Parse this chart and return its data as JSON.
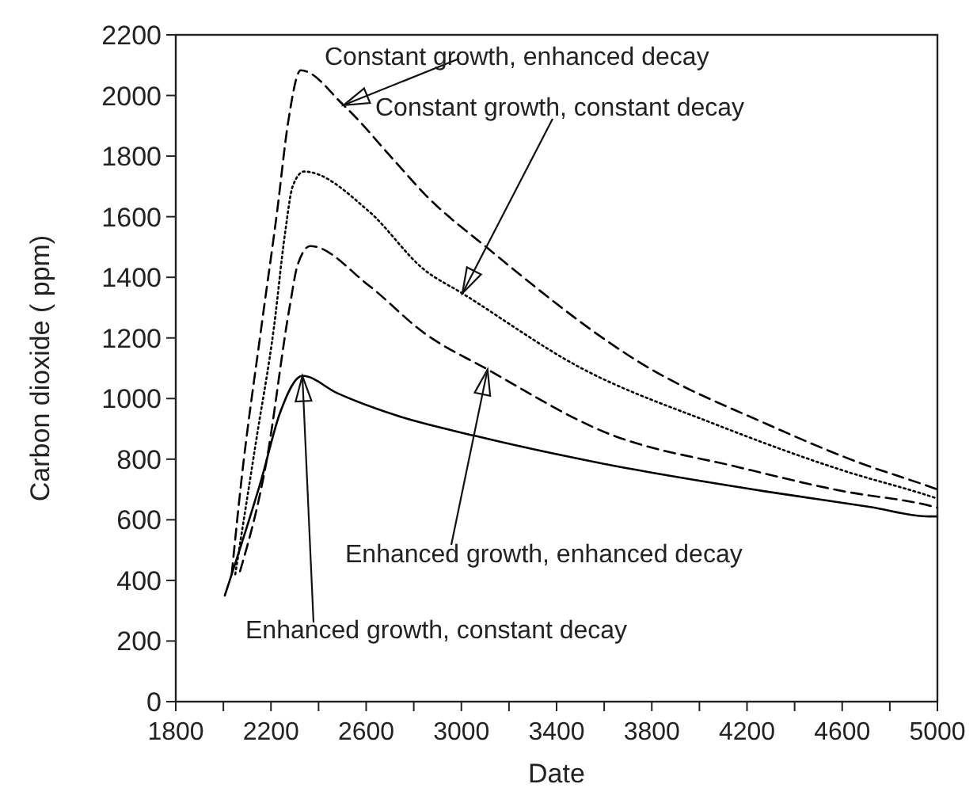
{
  "chart_data": {
    "type": "line",
    "xlabel": "Date",
    "ylabel": "Carbon dioxide ( ppm)",
    "xlim": [
      1800,
      5000
    ],
    "ylim": [
      0,
      2200
    ],
    "xticks": [
      1800,
      {
        "value": 2000,
        "label": null
      },
      2200,
      {
        "value": 2400,
        "label": null
      },
      2600,
      {
        "value": 2800,
        "label": null
      },
      3000,
      {
        "value": 3200,
        "label": null
      },
      3400,
      {
        "value": 3600,
        "label": null
      },
      3800,
      {
        "value": 4000,
        "label": null
      },
      4200,
      {
        "value": 4400,
        "label": null
      },
      4600,
      {
        "value": 4800,
        "label": null
      },
      5000
    ],
    "yticks": [
      0,
      200,
      400,
      600,
      800,
      1000,
      1200,
      1400,
      1600,
      1800,
      2000,
      2200
    ],
    "grid": false,
    "series": [
      {
        "color": "#000000",
        "line_style": "dashed",
        "x": [
          2035,
          2073,
          2159,
          2226,
          2272,
          2325,
          2505,
          2724,
          2844,
          3123,
          3788,
          4274,
          4673,
          4965,
          5000
        ],
        "values": [
          420,
          710,
          1232,
          1618,
          1911,
          2083,
          1968,
          1780,
          1676,
          1488,
          1101,
          919,
          788,
          710,
          700
        ]
      },
      {
        "color": "#000000",
        "line_style": "dotted",
        "x": [
          2050,
          2139,
          2212,
          2259,
          2292,
          2339,
          2611,
          2844,
          3004,
          3502,
          4054,
          4606,
          4965,
          5000
        ],
        "values": [
          420,
          867,
          1232,
          1545,
          1702,
          1749,
          1618,
          1425,
          1347,
          1101,
          919,
          762,
          679,
          670
        ]
      },
      {
        "color": "#000000",
        "line_style": "dashed",
        "x": [
          2070,
          2179,
          2279,
          2312,
          2365,
          2611,
          2844,
          3110,
          3609,
          4167,
          4606,
          4965,
          5000
        ],
        "values": [
          430,
          783,
          1305,
          1441,
          1503,
          1373,
          1216,
          1096,
          887,
          773,
          694,
          647,
          640
        ]
      },
      {
        "color": "#000000",
        "line_style": "solid",
        "x": [
          2006,
          2159,
          2239,
          2332,
          2478,
          2724,
          3057,
          3609,
          4274,
          4719,
          4965,
          5000
        ],
        "values": [
          350,
          731,
          955,
          1075,
          1018,
          945,
          877,
          783,
          694,
          642,
          611,
          611
        ]
      }
    ],
    "annotations": [
      {
        "text": "Constant growth, enhanced decay",
        "x": 2505,
        "y": 1968
      },
      {
        "text": "Constant growth, constant decay",
        "x": 3004,
        "y": 1347
      },
      {
        "text": "Enhanced growth, enhanced decay",
        "x": 3110,
        "y": 1096
      },
      {
        "text": "Enhanced growth, constant decay",
        "x": 2332,
        "y": 1075
      }
    ]
  }
}
